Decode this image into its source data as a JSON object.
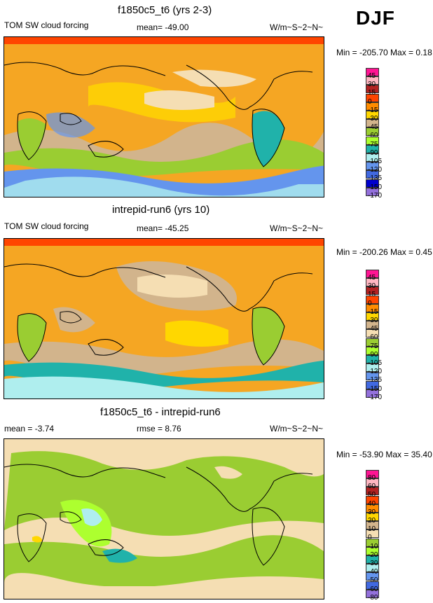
{
  "season": "DJF",
  "chart_data": [
    {
      "type": "heatmap",
      "title": "f1850c5_t6 (yrs 2-3)",
      "left_label": "TOM SW cloud forcing",
      "center_label": "mean= -49.00",
      "units": "W/m~S~2~N~",
      "minmax": "Min = -205.70 Max =   0.18",
      "levels": [
        "45",
        "30",
        "15",
        "0",
        "-15",
        "-30",
        "-45",
        "-60",
        "-75",
        "-90",
        "-105",
        "-120",
        "-135",
        "-150",
        "-170"
      ],
      "colors": [
        "#ff1493",
        "#ffb6c1",
        "#b22222",
        "#ff4500",
        "#ff8c00",
        "#ffd700",
        "#d2b48c",
        "#9acd32",
        "#adff2f",
        "#20b2aa",
        "#afeeee",
        "#6495ed",
        "#4169e1",
        "#0000cd",
        "#9370db"
      ],
      "background_level": "-15"
    },
    {
      "type": "heatmap",
      "title": "intrepid-run6 (yrs 10)",
      "left_label": "TOM SW cloud forcing",
      "center_label": "mean= -45.25",
      "units": "W/m~S~2~N~",
      "minmax": "Min = -200.26 Max =   0.45",
      "levels": [
        "45",
        "30",
        "15",
        "0",
        "-15",
        "-30",
        "-45",
        "-60",
        "-75",
        "-90",
        "-105",
        "-120",
        "-135",
        "-150",
        "-170"
      ],
      "colors": [
        "#ff1493",
        "#ffb6c1",
        "#b22222",
        "#ff4500",
        "#ff8c00",
        "#ffd700",
        "#d2b48c",
        "#f5deb3",
        "#9acd32",
        "#adff2f",
        "#20b2aa",
        "#afeeee",
        "#6495ed",
        "#4169e1",
        "#9370db"
      ],
      "background_level": "-15"
    },
    {
      "type": "heatmap",
      "title": "f1850c5_t6 - intrepid-run6",
      "left_label": "mean =  -3.74",
      "center_label": "rmse =   8.76",
      "units": "W/m~S~2~N~",
      "minmax": "Min = -53.90 Max =  35.40",
      "levels": [
        "80",
        "60",
        "50",
        "40",
        "30",
        "20",
        "10",
        "0",
        "-10",
        "-20",
        "-30",
        "-40",
        "-50",
        "-60",
        "-80"
      ],
      "colors": [
        "#ff1493",
        "#ffb6c1",
        "#b22222",
        "#ff4500",
        "#ff8c00",
        "#ffd700",
        "#d2b48c",
        "#f5deb3",
        "#9acd32",
        "#adff2f",
        "#20b2aa",
        "#afeeee",
        "#6495ed",
        "#4169e1",
        "#9370db"
      ],
      "background_level": "0"
    }
  ]
}
